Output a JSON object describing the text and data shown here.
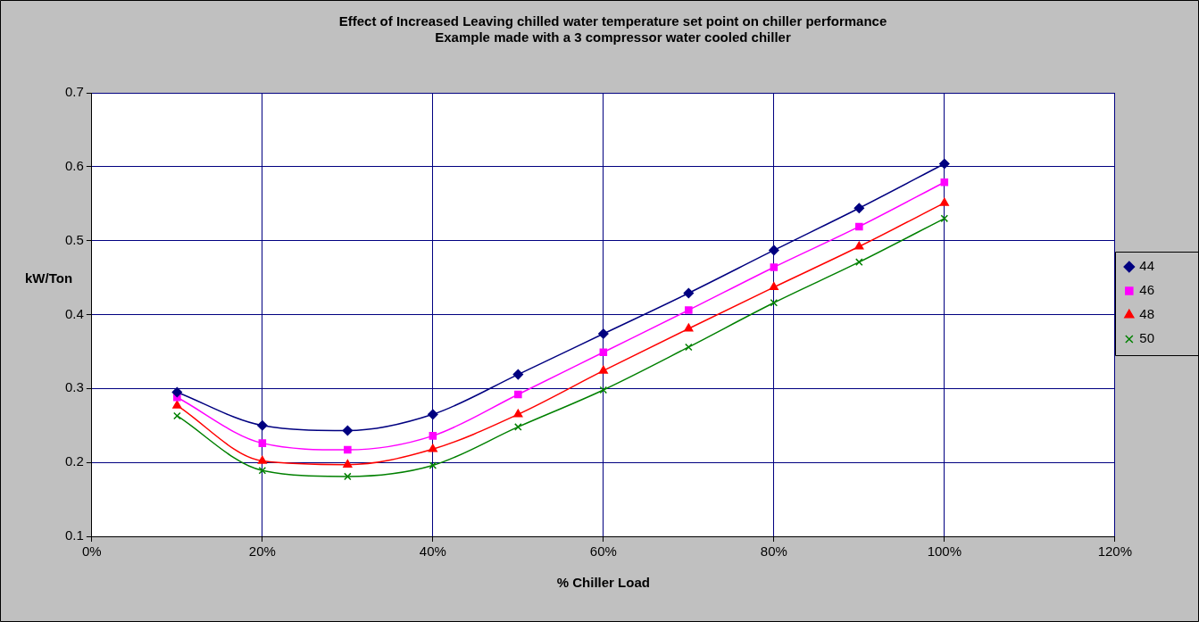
{
  "chart_data": {
    "type": "line",
    "title": "Effect of Increased Leaving chilled water temperature set point on chiller performance",
    "subtitle": "Example made with a 3 compressor water cooled chiller",
    "xlabel": "% Chiller Load",
    "ylabel": "kW/Ton",
    "x": [
      10,
      20,
      30,
      40,
      50,
      60,
      70,
      80,
      90,
      100
    ],
    "series": [
      {
        "name": "44",
        "color": "#000080",
        "marker": "diamond",
        "values": [
          0.295,
          0.25,
          0.243,
          0.265,
          0.319,
          0.374,
          0.429,
          0.487,
          0.544,
          0.604
        ]
      },
      {
        "name": "46",
        "color": "#ff00ff",
        "marker": "square",
        "values": [
          0.288,
          0.226,
          0.217,
          0.236,
          0.292,
          0.349,
          0.406,
          0.464,
          0.519,
          0.579
        ]
      },
      {
        "name": "48",
        "color": "#ff0000",
        "marker": "triangle",
        "values": [
          0.277,
          0.202,
          0.197,
          0.218,
          0.265,
          0.324,
          0.381,
          0.437,
          0.492,
          0.551
        ]
      },
      {
        "name": "50",
        "color": "#008000",
        "marker": "cross",
        "values": [
          0.263,
          0.189,
          0.181,
          0.196,
          0.248,
          0.298,
          0.356,
          0.416,
          0.471,
          0.53
        ]
      }
    ],
    "xlim": [
      0,
      120
    ],
    "xticks": [
      {
        "value": 0,
        "label": "0%"
      },
      {
        "value": 20,
        "label": "20%"
      },
      {
        "value": 40,
        "label": "40%"
      },
      {
        "value": 60,
        "label": "60%"
      },
      {
        "value": 80,
        "label": "80%"
      },
      {
        "value": 100,
        "label": "100%"
      },
      {
        "value": 120,
        "label": "120%"
      }
    ],
    "ylim": [
      0.1,
      0.7
    ],
    "yticks": [
      0.1,
      0.2,
      0.3,
      0.4,
      0.5,
      0.6,
      0.7
    ],
    "grid": true,
    "legend": "right",
    "line_style": "solid"
  }
}
